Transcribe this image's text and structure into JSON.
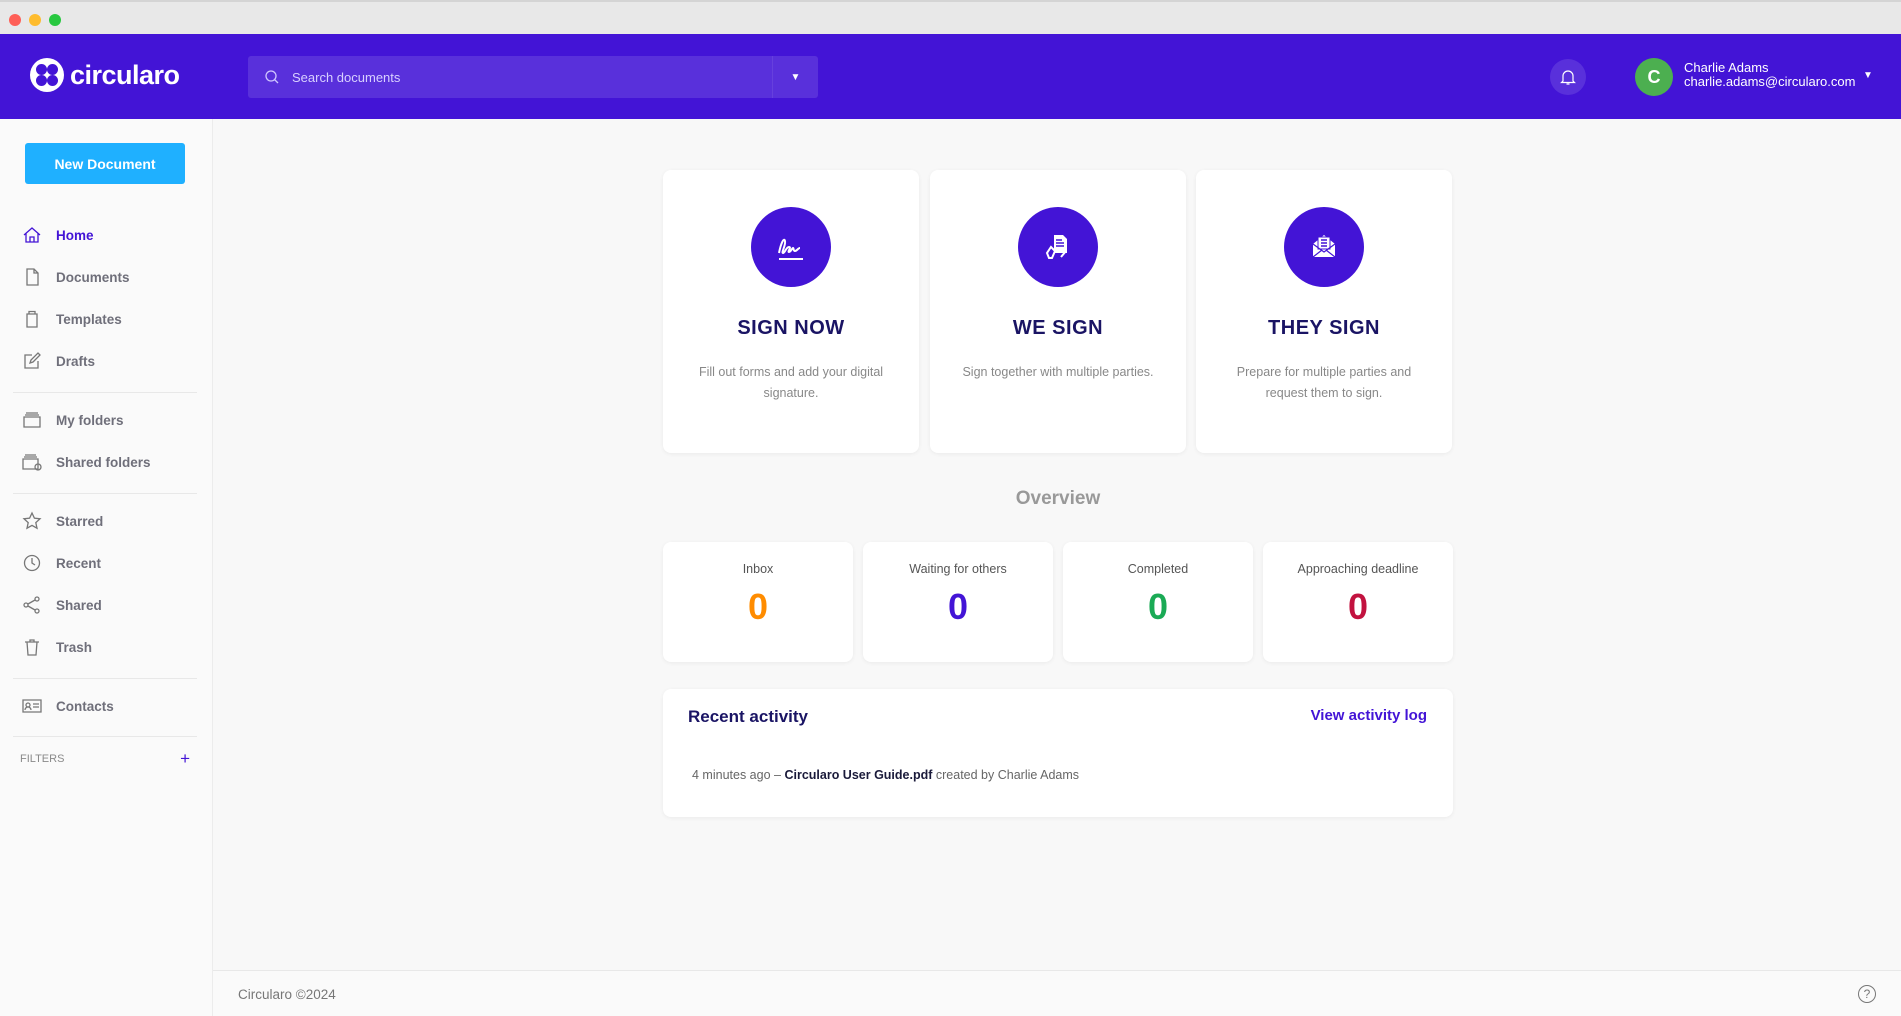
{
  "app": {
    "brand": "circularo",
    "accent": "#4314d6"
  },
  "header": {
    "search_placeholder": "Search documents",
    "user_name": "Charlie Adams",
    "user_email": "charlie.adams@circularo.com",
    "avatar_initial": "C"
  },
  "sidebar": {
    "new_document": "New Document",
    "items": [
      {
        "label": "Home",
        "icon": "home-icon"
      },
      {
        "label": "Documents",
        "icon": "document-icon"
      },
      {
        "label": "Templates",
        "icon": "template-icon"
      },
      {
        "label": "Drafts",
        "icon": "edit-icon"
      },
      {
        "label": "My folders",
        "icon": "folder-icon"
      },
      {
        "label": "Shared folders",
        "icon": "shared-folder-icon"
      },
      {
        "label": "Starred",
        "icon": "star-icon"
      },
      {
        "label": "Recent",
        "icon": "clock-icon"
      },
      {
        "label": "Shared",
        "icon": "share-icon"
      },
      {
        "label": "Trash",
        "icon": "trash-icon"
      },
      {
        "label": "Contacts",
        "icon": "contacts-icon"
      }
    ],
    "filters": "FILTERS",
    "filters_add": "+"
  },
  "actions": [
    {
      "title": "SIGN NOW",
      "desc": "Fill out forms and add your digital signature."
    },
    {
      "title": "WE SIGN",
      "desc": "Sign together with multiple parties."
    },
    {
      "title": "THEY SIGN",
      "desc": "Prepare for multiple parties and request them to sign."
    }
  ],
  "overview": {
    "title": "Overview",
    "stats": [
      {
        "label": "Inbox",
        "value": "0",
        "color": "#ff8c00"
      },
      {
        "label": "Waiting for others",
        "value": "0",
        "color": "#4314d6"
      },
      {
        "label": "Completed",
        "value": "0",
        "color": "#1aaa55"
      },
      {
        "label": "Approaching deadline",
        "value": "0",
        "color": "#c2123f"
      }
    ]
  },
  "recent": {
    "title": "Recent activity",
    "link": "View activity log",
    "items": [
      {
        "time": "4 minutes ago",
        "sep": "–",
        "file": "Circularo User Guide.pdf",
        "action": "created by Charlie Adams"
      }
    ]
  },
  "footer": {
    "copyright": "Circularo ©2024",
    "help": "?"
  }
}
